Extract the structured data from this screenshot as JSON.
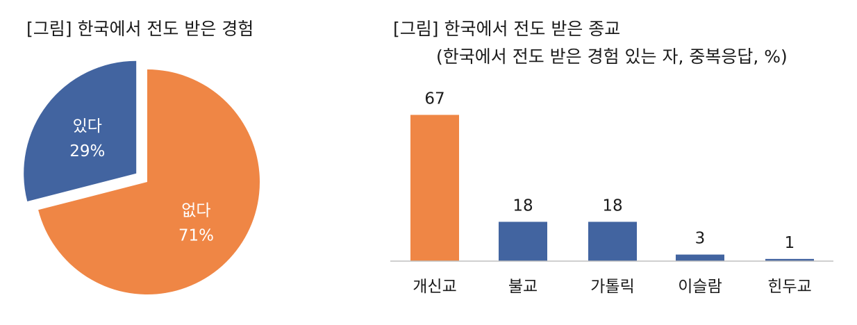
{
  "chart_data": [
    {
      "type": "pie",
      "title": "[그림] 한국에서 전도 받은 경험",
      "slices": [
        {
          "label": "있다",
          "value": 29,
          "value_label": "29%",
          "color": "#4264A0",
          "exploded": true
        },
        {
          "label": "없다",
          "value": 71,
          "value_label": "71%",
          "color": "#EF8645",
          "exploded": false
        }
      ]
    },
    {
      "type": "bar",
      "title": "[그림] 한국에서 전도 받은 종교",
      "subtitle": "(한국에서 전도 받은 경험 있는 자, 중복응답, %)",
      "categories": [
        "개신교",
        "불교",
        "가톨릭",
        "이슬람",
        "힌두교"
      ],
      "values": [
        67,
        18,
        18,
        3,
        1
      ],
      "colors": [
        "#EF8645",
        "#4264A0",
        "#4264A0",
        "#4264A0",
        "#4264A0"
      ],
      "ylim": [
        0,
        70
      ],
      "grid": false
    }
  ]
}
